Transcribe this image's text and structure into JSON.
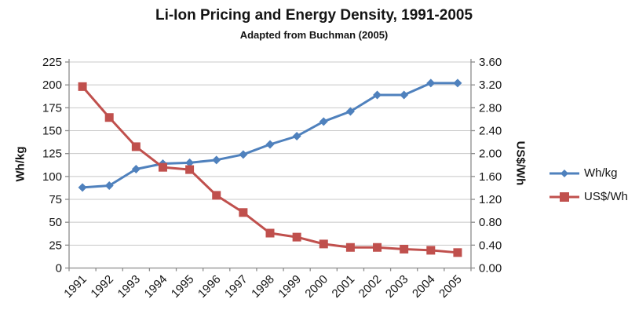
{
  "title": "Li-Ion Pricing and Energy Density, 1991-2005",
  "subtitle": "Adapted from Buchman (2005)",
  "chart_data": {
    "type": "line",
    "categories": [
      "1991",
      "1992",
      "1993",
      "1994",
      "1995",
      "1996",
      "1997",
      "1998",
      "1999",
      "2000",
      "2001",
      "2002",
      "2003",
      "2004",
      "2005"
    ],
    "series": [
      {
        "name": "Wh/kg",
        "axis": "left",
        "marker": "diamond",
        "color": "#4F81BD",
        "values": [
          88,
          90,
          108,
          114,
          115,
          118,
          124,
          135,
          144,
          160,
          171,
          189,
          189,
          202,
          202
        ]
      },
      {
        "name": "US$/Wh",
        "axis": "right",
        "marker": "square",
        "color": "#C0504D",
        "values": [
          3.17,
          2.63,
          2.12,
          1.76,
          1.72,
          1.27,
          0.97,
          0.61,
          0.54,
          0.42,
          0.36,
          0.36,
          0.33,
          0.31,
          0.27
        ]
      }
    ],
    "left_axis": {
      "label": "Wh/kg",
      "min": 0,
      "max": 225,
      "step": 25,
      "tick_labels": [
        "0",
        "25",
        "50",
        "75",
        "100",
        "125",
        "150",
        "175",
        "200",
        "225"
      ]
    },
    "right_axis": {
      "label": "US$/Wh",
      "min": 0,
      "max": 3.6,
      "step": 0.4,
      "tick_labels": [
        "0.00",
        "0.40",
        "0.80",
        "1.20",
        "1.60",
        "2.00",
        "2.40",
        "2.80",
        "3.20",
        "3.60"
      ]
    },
    "grid": true,
    "legend_position": "right"
  },
  "colors": {
    "series_whkg": "#4F81BD",
    "series_usdwh": "#C0504D",
    "gridline": "#C8C8C8",
    "axis_line": "#8C8C8C",
    "text": "#141414",
    "background": "#FFFFFF"
  }
}
